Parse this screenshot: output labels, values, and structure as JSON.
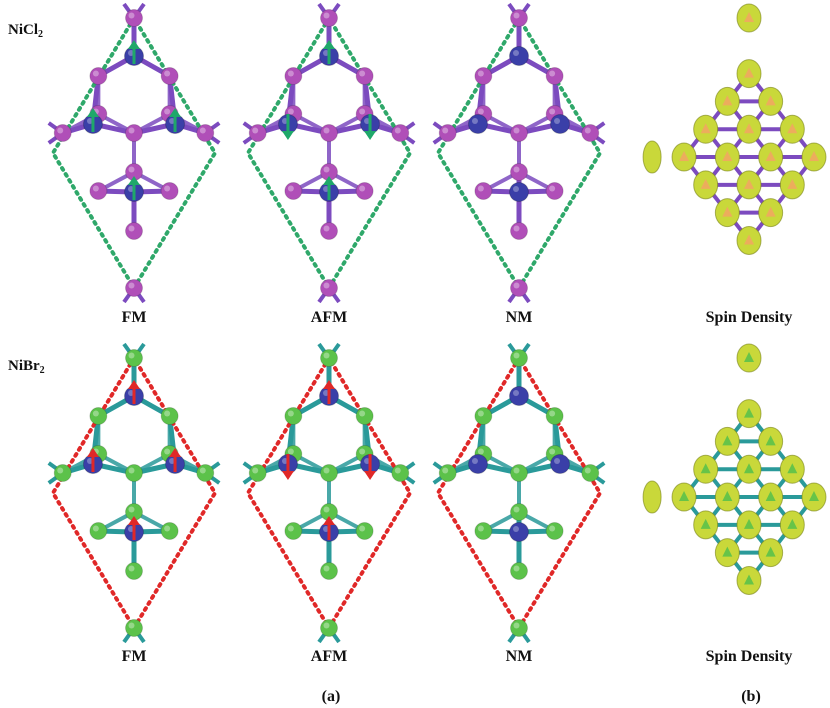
{
  "rows": [
    {
      "material_main": "NiCl",
      "material_sub": "2",
      "halide_color": "#b04fb8",
      "bond_color": "#7c4bbf",
      "ni_color": "#3a3fa8",
      "dot_color": "#2fa86a",
      "arrow_color": "#1fa86a",
      "density_color": "#c9d83a",
      "density_accent": "#f0a860",
      "panels": [
        {
          "label": "FM",
          "spins": [
            "up",
            "up",
            "up",
            "up"
          ]
        },
        {
          "label": "AFM",
          "spins": [
            "up",
            "down",
            "down",
            "up"
          ]
        },
        {
          "label": "NM",
          "spins": []
        }
      ],
      "density_label": "Spin Density"
    },
    {
      "material_main": "NiBr",
      "material_sub": "2",
      "halide_color": "#5cc24a",
      "bond_color": "#2a9a9a",
      "ni_color": "#3a3fa8",
      "dot_color": "#e02828",
      "arrow_color": "#e02828",
      "density_color": "#c9d83a",
      "density_accent": "#5cc24a",
      "panels": [
        {
          "label": "FM",
          "spins": [
            "up",
            "up",
            "up",
            "up"
          ]
        },
        {
          "label": "AFM",
          "spins": [
            "up",
            "down",
            "down",
            "up"
          ]
        },
        {
          "label": "NM",
          "spins": []
        }
      ],
      "density_label": "Spin Density"
    }
  ],
  "caption_a": "(a)",
  "caption_b": "(b)"
}
